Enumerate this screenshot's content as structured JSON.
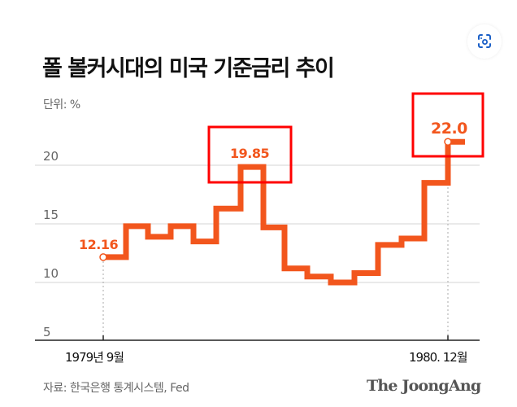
{
  "title": "폴 볼커시대의 미국 기준금리 추이",
  "unit_label": "단위: %",
  "source": "자료: 한국은행 통계시스템, Fed",
  "brand": "The JoongAng",
  "lens_icon": "lens-scan-icon",
  "colors": {
    "line": "#f2561d",
    "highlight_box": "#ff0000",
    "grid": "#dddddd"
  },
  "chart_data": {
    "type": "line",
    "step": true,
    "title": "폴 볼커시대의 미국 기준금리 추이",
    "ylabel": "단위: %",
    "ylim": [
      5,
      22.5
    ],
    "yticks": [
      "5",
      "10",
      "15",
      "20"
    ],
    "ytick_values": [
      5,
      10,
      15,
      20
    ],
    "grid": true,
    "xticks": [
      "1979년 9월",
      "1980. 12월"
    ],
    "values": [
      12.16,
      14.8,
      13.9,
      14.8,
      13.5,
      16.3,
      19.85,
      14.7,
      11.2,
      10.5,
      10.0,
      10.8,
      13.2,
      13.75,
      18.5,
      22.0
    ],
    "annotations": [
      {
        "label": "12.16",
        "index": 0,
        "boxed": false
      },
      {
        "label": "19.85",
        "index": 6,
        "boxed": true
      },
      {
        "label": "22.0",
        "index": 15,
        "boxed": true
      }
    ]
  }
}
